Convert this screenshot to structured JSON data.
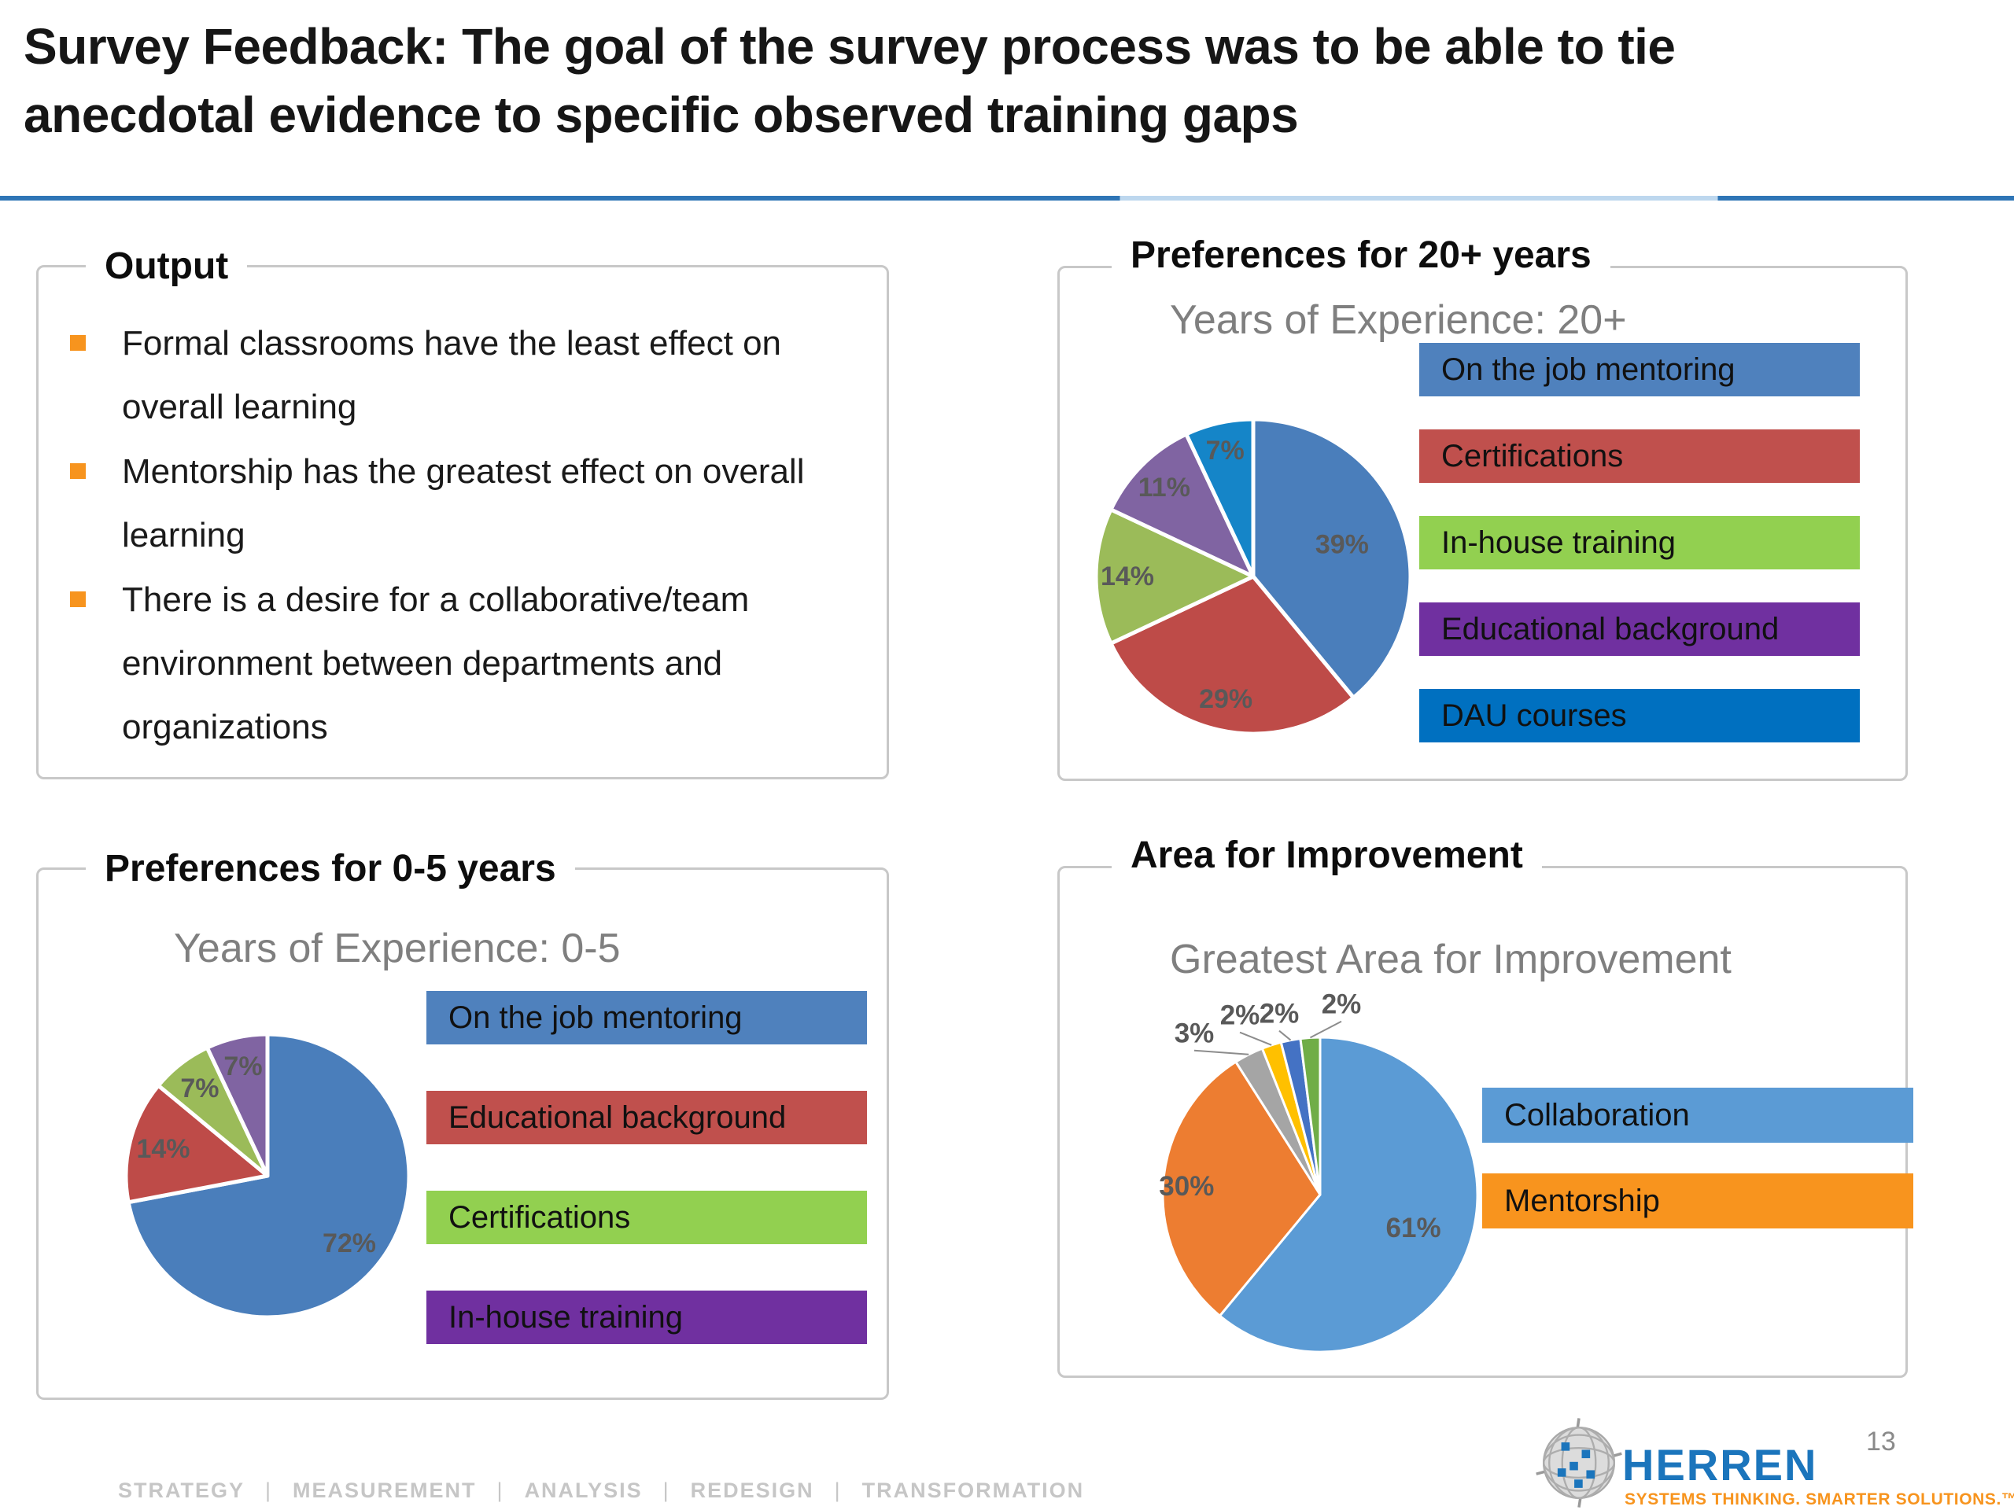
{
  "slide": {
    "title": "Survey Feedback: The goal of the survey process was to be able to tie\nanecdotal evidence to specific observed training gaps",
    "rule_colors": {
      "dark": "#2E75B6",
      "light": "#BDD7EE"
    }
  },
  "output_panel": {
    "header": "Output",
    "bullet_color": "#F7941E",
    "bullets": [
      "Formal classrooms have the least effect on overall learning",
      "Mentorship has the greatest effect on overall learning",
      "There is a desire for a collaborative/team environment between departments and organizations"
    ]
  },
  "chart_data": [
    {
      "id": "preferences-20plus",
      "type": "pie",
      "panel_header": "Preferences for 20+ years",
      "title": "Years of Experience: 20+",
      "legend_position": "right",
      "slices": [
        {
          "name": "On the job mentoring",
          "pct": 39,
          "label": "39%",
          "color": "#4A7EBB",
          "lr": 0.6
        },
        {
          "name": "Certifications",
          "pct": 29,
          "label": "29%",
          "color": "#BE4B48",
          "lr": 0.8
        },
        {
          "name": "In-house training",
          "pct": 14,
          "label": "14%",
          "color": "#9BBB59",
          "lr": 0.8
        },
        {
          "name": "Educational background",
          "pct": 11,
          "label": "11%",
          "color": "#8064A2",
          "lr": 0.8
        },
        {
          "name": "DAU courses",
          "pct": 7,
          "label": "7%",
          "color": "#1585C8",
          "lr": 0.82
        }
      ],
      "legend": [
        {
          "label": "On the job mentoring",
          "color": "#4F81BD"
        },
        {
          "label": "Certifications",
          "color": "#C0504D"
        },
        {
          "label": "In-house training",
          "color": "#92D050"
        },
        {
          "label": "Educational background",
          "color": "#7030A0"
        },
        {
          "label": "DAU courses",
          "color": "#0070C0"
        }
      ]
    },
    {
      "id": "preferences-0-5",
      "type": "pie",
      "panel_header": "Preferences for 0-5 years",
      "title": "Years of Experience: 0-5",
      "legend_position": "right",
      "slices": [
        {
          "name": "On the job mentoring",
          "pct": 72,
          "label": "72%",
          "color": "#4A7EBB",
          "lr": 0.75
        },
        {
          "name": "Educational background",
          "pct": 14,
          "label": "14%",
          "color": "#BE4B48",
          "lr": 0.76
        },
        {
          "name": "Certifications",
          "pct": 7,
          "label": "7%",
          "color": "#9BBB59",
          "lr": 0.78
        },
        {
          "name": "In-house training",
          "pct": 7,
          "label": "7%",
          "color": "#8064A2",
          "lr": 0.79
        }
      ],
      "legend": [
        {
          "label": "On the job mentoring",
          "color": "#4F81BD"
        },
        {
          "label": "Educational background",
          "color": "#C0504D"
        },
        {
          "label": "Certifications",
          "color": "#92D050"
        },
        {
          "label": "In-house training",
          "color": "#7030A0"
        }
      ]
    },
    {
      "id": "area-for-improvement",
      "type": "pie",
      "panel_header": "Area for Improvement",
      "title": "Greatest Area for Improvement",
      "legend_position": "right",
      "slices": [
        {
          "name": "Collaboration",
          "pct": 61,
          "label": "61%",
          "color": "#5B9BD5",
          "lr": 0.63
        },
        {
          "name": "Mentorship",
          "pct": 30,
          "label": "30%",
          "color": "#ED7D31",
          "lr": 0.85
        },
        {
          "name": "",
          "pct": 3,
          "label": "3%",
          "color": "#A5A5A5",
          "outside": true,
          "pos": [
            -160,
            -205
          ]
        },
        {
          "name": "",
          "pct": 2,
          "label": "2%",
          "color": "#FFC000",
          "outside": true,
          "pos": [
            -102,
            -228
          ]
        },
        {
          "name": "",
          "pct": 2,
          "label": "2%",
          "color": "#4472C4",
          "outside": true,
          "pos": [
            -52,
            -230
          ]
        },
        {
          "name": "",
          "pct": 2,
          "label": "2%",
          "color": "#70AD47",
          "outside": true,
          "pos": [
            27,
            -242
          ]
        }
      ],
      "legend": [
        {
          "label": "Collaboration",
          "color": "#5B9BD5"
        },
        {
          "label": "Mentorship",
          "color": "#F8941E"
        }
      ]
    }
  ],
  "footer": {
    "separator": "|",
    "items": [
      "STRATEGY",
      "MEASUREMENT",
      "ANALYSIS",
      "REDESIGN",
      "TRANSFORMATION"
    ]
  },
  "logo": {
    "brand": "HERREN",
    "tagline": "SYSTEMS THINKING. SMARTER SOLUTIONS.™",
    "page_number": "13"
  }
}
